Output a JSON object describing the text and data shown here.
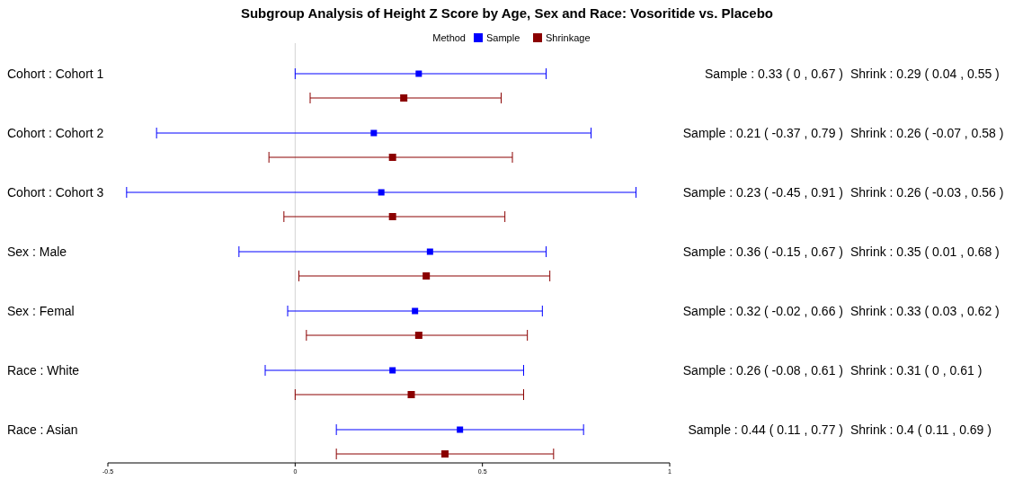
{
  "chart_data": {
    "type": "scatter",
    "orientation": "horizontal",
    "title": "Subgroup Analysis of Height Z Score by Age, Sex and Race: Vosoritide vs. Placebo",
    "legend_title": "Method",
    "legend": "top",
    "marker": "square",
    "grid": false,
    "categories": [
      "Cohort : Cohort 1",
      "Cohort : Cohort 2",
      "Cohort : Cohort 3",
      "Sex : Male",
      "Sex : Femal",
      "Race : White",
      "Race : Asian"
    ],
    "xlim": [
      -0.5,
      1
    ],
    "xticks": [
      -0.5,
      0,
      0.5,
      1
    ],
    "ref_lines": [
      {
        "axis": "x",
        "value": 0,
        "color": "#d3d3d3"
      }
    ],
    "series": [
      {
        "name": "Sample",
        "color": "#0000ff",
        "values": [
          0.33,
          0.21,
          0.23,
          0.36,
          0.32,
          0.26,
          0.44
        ],
        "errors": [
          [
            0,
            0.67
          ],
          [
            -0.37,
            0.79
          ],
          [
            -0.45,
            0.91
          ],
          [
            -0.15,
            0.67
          ],
          [
            -0.02,
            0.66
          ],
          [
            -0.08,
            0.61
          ],
          [
            0.11,
            0.77
          ]
        ]
      },
      {
        "name": "Shrinkage",
        "color": "#8b0000",
        "values": [
          0.29,
          0.26,
          0.26,
          0.35,
          0.33,
          0.31,
          0.4
        ],
        "errors": [
          [
            0.04,
            0.55
          ],
          [
            -0.07,
            0.58
          ],
          [
            -0.03,
            0.56
          ],
          [
            0.01,
            0.68
          ],
          [
            0.03,
            0.62
          ],
          [
            0,
            0.61
          ],
          [
            0.11,
            0.69
          ]
        ]
      }
    ],
    "annotations": [
      "Sample : 0.33 ( 0 , 0.67 )",
      "Shrink : 0.29 ( 0.04 , 0.55 )",
      "Sample : 0.21 ( -0.37 , 0.79 )",
      "Shrink : 0.26 ( -0.07 , 0.58 )",
      "Sample : 0.23 ( -0.45 , 0.91 )",
      "Shrink : 0.26 ( -0.03 , 0.56 )",
      "Sample : 0.36 ( -0.15 , 0.67 )",
      "Shrink : 0.35 ( 0.01 , 0.68 )",
      "Sample : 0.32 ( -0.02 , 0.66 )",
      "Shrink : 0.33 ( 0.03 , 0.62 )",
      "Sample : 0.26 ( -0.08 , 0.61 )",
      "Shrink : 0.31 ( 0 , 0.61 )",
      "Sample : 0.44 ( 0.11 , 0.77 )",
      "Shrink : 0.4 ( 0.11 , 0.69 )"
    ]
  }
}
